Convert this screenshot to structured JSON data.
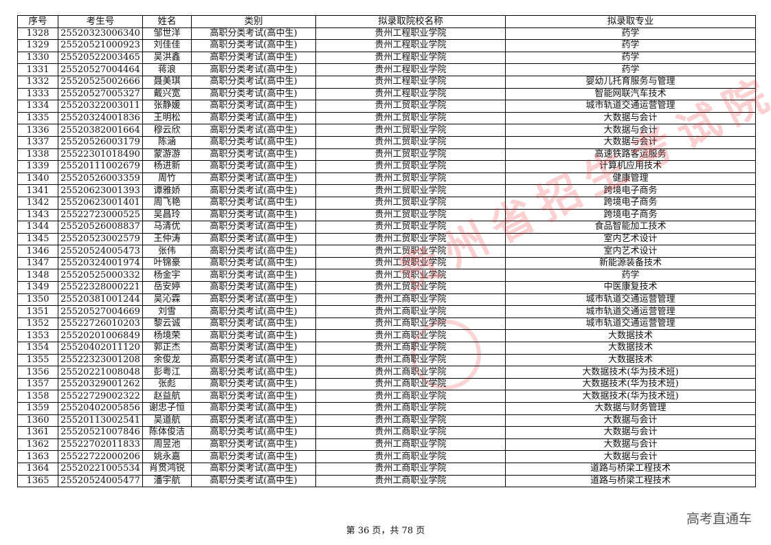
{
  "table": {
    "headers": [
      "序号",
      "考生号",
      "姓名",
      "类别",
      "拟录取院校名称",
      "拟录取专业"
    ],
    "rows": [
      [
        "1328",
        "25520323006340",
        "邹世洋",
        "高职分类考试(高中生)",
        "贵州工程职业学院",
        "药学"
      ],
      [
        "1329",
        "25520521000923",
        "刘佳佳",
        "高职分类考试(高中生)",
        "贵州工程职业学院",
        "药学"
      ],
      [
        "1330",
        "25520522003465",
        "吴洪鑫",
        "高职分类考试(高中生)",
        "贵州工程职业学院",
        "药学"
      ],
      [
        "1331",
        "25520527004464",
        "蒋浪",
        "高职分类考试(高中生)",
        "贵州工程职业学院",
        "药学"
      ],
      [
        "1332",
        "25520525002666",
        "聂美琪",
        "高职分类考试(高中生)",
        "贵州工程职业学院",
        "婴幼儿托育服务与管理"
      ],
      [
        "1333",
        "25520527005327",
        "戴兴宽",
        "高职分类考试(高中生)",
        "贵州工程职业学院",
        "智能网联汽车技术"
      ],
      [
        "1334",
        "25520322003011",
        "张静媛",
        "高职分类考试(高中生)",
        "贵州工贸职业学院",
        "城市轨道交通运营管理"
      ],
      [
        "1335",
        "25520324001836",
        "王明松",
        "高职分类考试(高中生)",
        "贵州工贸职业学院",
        "大数据与会计"
      ],
      [
        "1336",
        "25520382001664",
        "穆云欣",
        "高职分类考试(高中生)",
        "贵州工贸职业学院",
        "大数据与会计"
      ],
      [
        "1337",
        "25520526003179",
        "陈涵",
        "高职分类考试(高中生)",
        "贵州工贸职业学院",
        "大数据与会计"
      ],
      [
        "1338",
        "25522301018490",
        "蒙游游",
        "高职分类考试(高中生)",
        "贵州工贸职业学院",
        "高速铁路客运服务"
      ],
      [
        "1339",
        "25520111002679",
        "杨进新",
        "高职分类考试(高中生)",
        "贵州工贸职业学院",
        "计算机应用技术"
      ],
      [
        "1340",
        "25520526003359",
        "周竹",
        "高职分类考试(高中生)",
        "贵州工贸职业学院",
        "健康管理"
      ],
      [
        "1341",
        "25520623001393",
        "谭雅娇",
        "高职分类考试(高中生)",
        "贵州工贸职业学院",
        "跨境电子商务"
      ],
      [
        "1342",
        "25520623001401",
        "周飞艳",
        "高职分类考试(高中生)",
        "贵州工贸职业学院",
        "跨境电子商务"
      ],
      [
        "1343",
        "25522723000525",
        "吴昌玲",
        "高职分类考试(高中生)",
        "贵州工贸职业学院",
        "跨境电子商务"
      ],
      [
        "1344",
        "25520526008837",
        "马清优",
        "高职分类考试(高中生)",
        "贵州工贸职业学院",
        "食品智能加工技术"
      ],
      [
        "1345",
        "25520523002579",
        "王仲涛",
        "高职分类考试(高中生)",
        "贵州工贸职业学院",
        "室内艺术设计"
      ],
      [
        "1346",
        "25520524005473",
        "张伟",
        "高职分类考试(高中生)",
        "贵州工贸职业学院",
        "室内艺术设计"
      ],
      [
        "1347",
        "25520324001974",
        "叶锦豪",
        "高职分类考试(高中生)",
        "贵州工贸职业学院",
        "新能源装备技术"
      ],
      [
        "1348",
        "25520525000332",
        "杨金宇",
        "高职分类考试(高中生)",
        "贵州工贸职业学院",
        "药学"
      ],
      [
        "1349",
        "25522328000221",
        "岳安婷",
        "高职分类考试(高中生)",
        "贵州工贸职业学院",
        "中医康复技术"
      ],
      [
        "1350",
        "25520381001244",
        "吴沁霖",
        "高职分类考试(高中生)",
        "贵州工商职业学院",
        "城市轨道交通运营管理"
      ],
      [
        "1351",
        "25520527004669",
        "刘雪",
        "高职分类考试(高中生)",
        "贵州工商职业学院",
        "城市轨道交通运营管理"
      ],
      [
        "1352",
        "25522726010203",
        "黎云诚",
        "高职分类考试(高中生)",
        "贵州工商职业学院",
        "城市轨道交通运营管理"
      ],
      [
        "1353",
        "25520201006849",
        "杨境荣",
        "高职分类考试(高中生)",
        "贵州工商职业学院",
        "大数据技术"
      ],
      [
        "1354",
        "25520402011120",
        "郭正杰",
        "高职分类考试(高中生)",
        "贵州工商职业学院",
        "大数据技术"
      ],
      [
        "1355",
        "25522323001208",
        "余俊龙",
        "高职分类考试(高中生)",
        "贵州工商职业学院",
        "大数据技术"
      ],
      [
        "1356",
        "25520221008048",
        "彭粤江",
        "高职分类考试(高中生)",
        "贵州工商职业学院",
        "大数据技术(华为技术班)"
      ],
      [
        "1357",
        "25520329001262",
        "张彪",
        "高职分类考试(高中生)",
        "贵州工商职业学院",
        "大数据技术(华为技术班)"
      ],
      [
        "1358",
        "25522729002322",
        "赵益航",
        "高职分类考试(高中生)",
        "贵州工商职业学院",
        "大数据技术(华为技术班)"
      ],
      [
        "1359",
        "25520402005856",
        "谢忠子恒",
        "高职分类考试(高中生)",
        "贵州工商职业学院",
        "大数据与财务管理"
      ],
      [
        "1360",
        "25520113002541",
        "吴道航",
        "高职分类考试(高中生)",
        "贵州工商职业学院",
        "大数据与会计"
      ],
      [
        "1361",
        "25520521007846",
        "陈体俊洁",
        "高职分类考试(高中生)",
        "贵州工商职业学院",
        "大数据与会计"
      ],
      [
        "1362",
        "25522702011833",
        "周昱池",
        "高职分类考试(高中生)",
        "贵州工商职业学院",
        "大数据与会计"
      ],
      [
        "1363",
        "25522722000206",
        "姚永嘉",
        "高职分类考试(高中生)",
        "贵州工商职业学院",
        "大数据与会计"
      ],
      [
        "1364",
        "25520221005534",
        "肖贯鸿锐",
        "高职分类考试(高中生)",
        "贵州工商职业学院",
        "道路与桥梁工程技术"
      ],
      [
        "1365",
        "25520524005477",
        "潘宇航",
        "高职分类考试(高中生)",
        "贵州工商职业学院",
        "道路与桥梁工程技术"
      ]
    ]
  },
  "footer": {
    "page_info": "第 36 页，共 78 页"
  },
  "brand": "高考直通车",
  "watermark": {
    "text": "贵州省招生考试院",
    "color": "#e62828"
  }
}
